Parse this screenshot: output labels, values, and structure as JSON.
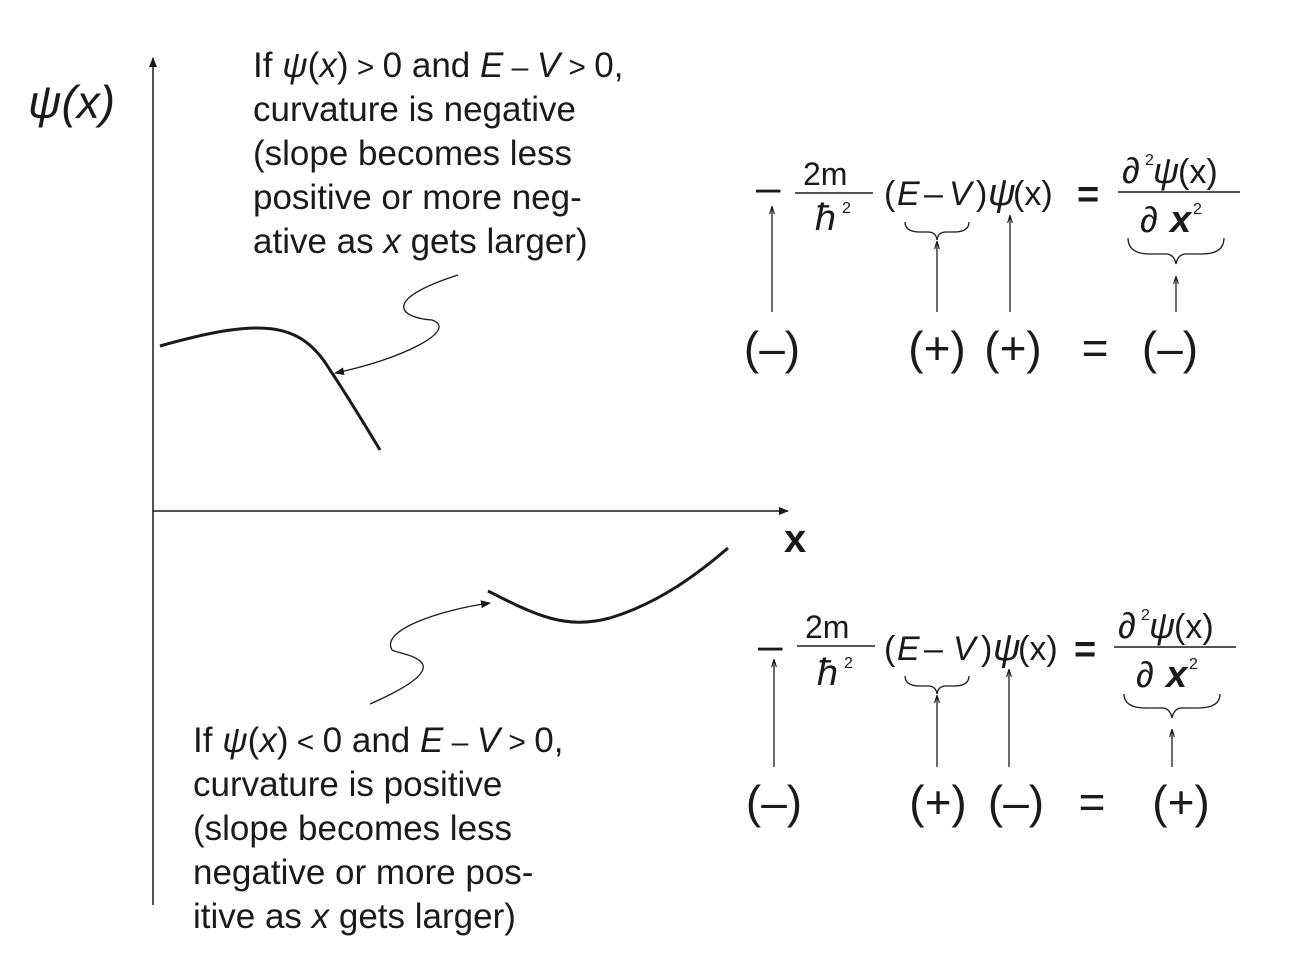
{
  "axes": {
    "y_label": "ψ(x)",
    "x_label": "x"
  },
  "annotation_top": {
    "lines": [
      [
        {
          "t": "If "
        },
        {
          "t": "ψ",
          "i": true
        },
        {
          "t": "("
        },
        {
          "t": "x",
          "i": true
        },
        {
          "t": ")"
        },
        {
          "t": " > ",
          "s": true
        },
        {
          "t": "0 and "
        },
        {
          "t": "E",
          "i": true
        },
        {
          "t": " – ",
          "s": true
        },
        {
          "t": "V",
          "i": true
        },
        {
          "t": " > ",
          "s": true
        },
        {
          "t": "0,"
        }
      ],
      [
        {
          "t": "curvature is negative"
        }
      ],
      [
        {
          "t": "(slope becomes less"
        }
      ],
      [
        {
          "t": "positive or more neg-"
        }
      ],
      [
        {
          "t": "ative as "
        },
        {
          "t": "x",
          "i": true
        },
        {
          "t": " gets larger)"
        }
      ]
    ]
  },
  "annotation_bottom": {
    "lines": [
      [
        {
          "t": "If "
        },
        {
          "t": "ψ",
          "i": true
        },
        {
          "t": "("
        },
        {
          "t": "x",
          "i": true
        },
        {
          "t": ")"
        },
        {
          "t": " < ",
          "s": true
        },
        {
          "t": "0 and "
        },
        {
          "t": "E",
          "i": true
        },
        {
          "t": " – ",
          "s": true
        },
        {
          "t": "V",
          "i": true
        },
        {
          "t": " > ",
          "s": true
        },
        {
          "t": "0,"
        }
      ],
      [
        {
          "t": "curvature is positive"
        }
      ],
      [
        {
          "t": "(slope becomes less"
        }
      ],
      [
        {
          "t": "negative or more pos-"
        }
      ],
      [
        {
          "t": "itive as "
        },
        {
          "t": "x",
          "i": true
        },
        {
          "t": " gets larger)"
        }
      ]
    ]
  },
  "equation": {
    "minus": "–",
    "frac_num": "2m",
    "frac_den": "ħ",
    "den_exp": "2",
    "open_paren": "(",
    "E": "E",
    "op_minus": "–",
    "V": "V",
    "close_paren": ")",
    "psi": "ψ",
    "arg": "(x)",
    "equals": "=",
    "rhs_partial": "∂",
    "rhs_exp": "2",
    "rhs_psi": "ψ",
    "rhs_arg": "(x)",
    "rhs_den_partial": "∂",
    "rhs_den_x": "x",
    "rhs_den_exp": "2"
  },
  "signs_top": {
    "s1": "(–)",
    "s2": "(+)",
    "s3": "(+)",
    "eq": "=",
    "s4": "(–)"
  },
  "signs_bottom": {
    "s1": "(–)",
    "s2": "(+)",
    "s3": "(–)",
    "eq": "=",
    "s4": "(+)"
  }
}
